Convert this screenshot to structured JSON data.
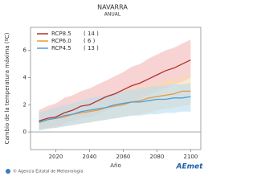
{
  "chart_data": {
    "type": "line",
    "title": "NAVARRA",
    "subtitle": "ANUAL",
    "y_label": "Cambio de la temperatura máxima (ºC)",
    "x_label": "Año",
    "x": [
      2010,
      2015,
      2020,
      2025,
      2030,
      2035,
      2040,
      2045,
      2050,
      2055,
      2060,
      2065,
      2070,
      2075,
      2080,
      2085,
      2090,
      2095,
      2100
    ],
    "xlim": [
      2005,
      2106
    ],
    "xticks": [
      2020,
      2040,
      2060,
      2080,
      2100
    ],
    "ylim": [
      -1.3,
      7.7
    ],
    "yticks": [
      0,
      2,
      4,
      6
    ],
    "zero_line": true,
    "legend": "upper left",
    "series": [
      {
        "name": "RCP8.5",
        "models": {
          "value": 14,
          "label": "( 14 )"
        },
        "color": "#b5302a",
        "band_color": "#f2b8b6",
        "values": [
          0.8,
          1.0,
          1.1,
          1.4,
          1.6,
          1.9,
          2.0,
          2.3,
          2.6,
          2.8,
          3.1,
          3.4,
          3.6,
          3.9,
          4.2,
          4.5,
          4.7,
          5.0,
          5.3
        ],
        "upper": [
          1.6,
          1.9,
          2.1,
          2.5,
          2.7,
          3.0,
          3.2,
          3.5,
          3.8,
          4.1,
          4.4,
          4.8,
          5.0,
          5.4,
          5.7,
          6.0,
          6.2,
          6.5,
          6.8
        ],
        "lower": [
          0.2,
          0.3,
          0.4,
          0.6,
          0.8,
          1.0,
          1.1,
          1.3,
          1.6,
          1.8,
          2.0,
          2.2,
          2.5,
          2.7,
          3.0,
          3.2,
          3.5,
          3.7,
          4.0
        ]
      },
      {
        "name": "RCP6.0",
        "models": {
          "value": 6,
          "label": "(  6 )"
        },
        "color": "#e89a3a",
        "band_color": "#f8d9ae",
        "values": [
          0.7,
          0.9,
          1.0,
          1.1,
          1.3,
          1.4,
          1.5,
          1.6,
          1.8,
          1.9,
          2.0,
          2.2,
          2.3,
          2.5,
          2.6,
          2.7,
          2.8,
          3.0,
          3.0
        ],
        "upper": [
          1.4,
          1.6,
          1.7,
          1.9,
          2.1,
          2.2,
          2.4,
          2.5,
          2.7,
          2.8,
          3.0,
          3.2,
          3.3,
          3.5,
          3.6,
          3.8,
          3.9,
          4.1,
          4.1
        ],
        "lower": [
          0.1,
          0.3,
          0.3,
          0.4,
          0.5,
          0.6,
          0.7,
          0.8,
          0.9,
          1.0,
          1.1,
          1.2,
          1.3,
          1.4,
          1.6,
          1.7,
          1.8,
          1.9,
          2.0
        ]
      },
      {
        "name": "RCP4.5",
        "models": {
          "value": 13,
          "label": "( 13 )"
        },
        "color": "#4d9ed8",
        "band_color": "#b9dcf2",
        "values": [
          0.7,
          0.9,
          1.0,
          1.2,
          1.3,
          1.5,
          1.6,
          1.7,
          1.8,
          2.0,
          2.1,
          2.2,
          2.2,
          2.3,
          2.4,
          2.4,
          2.5,
          2.5,
          2.6
        ],
        "upper": [
          1.4,
          1.6,
          1.8,
          2.0,
          2.1,
          2.3,
          2.5,
          2.6,
          2.7,
          2.9,
          3.0,
          3.1,
          3.2,
          3.3,
          3.4,
          3.4,
          3.5,
          3.5,
          3.6
        ],
        "lower": [
          0.1,
          0.2,
          0.3,
          0.4,
          0.5,
          0.6,
          0.7,
          0.8,
          0.9,
          1.0,
          1.1,
          1.2,
          1.2,
          1.3,
          1.3,
          1.4,
          1.4,
          1.5,
          1.5
        ]
      }
    ]
  },
  "footer": {
    "credit": "© Agencia Estatal de Meteorología",
    "logo": "AEmet"
  }
}
